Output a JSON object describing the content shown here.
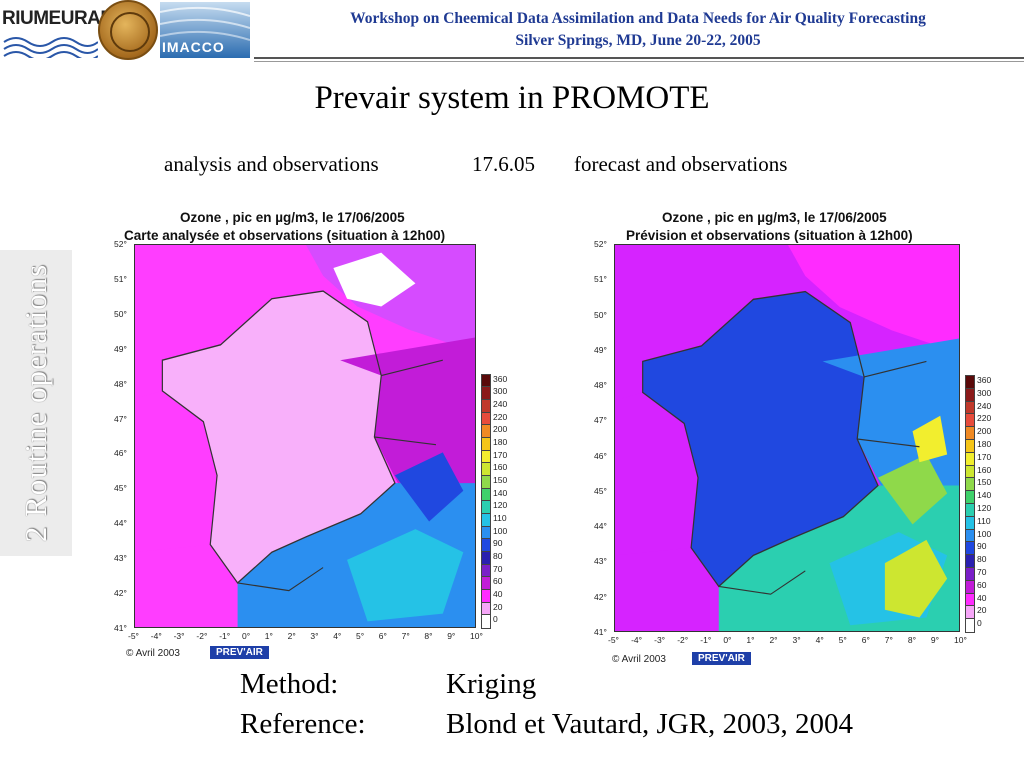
{
  "header": {
    "logo_text": "RIUMEURAD",
    "imacco_label": "IMACCO",
    "line1": "Workshop on Cheemical Data Assimilation and Data Needs for Air Quality Forecasting",
    "line2": "Silver Springs, MD, June 20-22, 2005"
  },
  "title": "Prevair system in PROMOTE",
  "subtitles": {
    "left": "analysis and observations",
    "date": "17.6.05",
    "right": "forecast and observations"
  },
  "side_label": "2 Routine operations",
  "maps": [
    {
      "title1": "Ozone , pic en µg/m3, le 17/06/2005",
      "title2": "Carte analysée et observations (situation à 12h00)",
      "copyright": "© Avril 2003",
      "badge": "PREV'AIR",
      "scheme": "analysis"
    },
    {
      "title1": "Ozone , pic en µg/m3, le 17/06/2005",
      "title2": "Prévision et observations (situation à 12h00)",
      "copyright": "© Avril 2003",
      "badge": "PREV'AIR",
      "scheme": "forecast"
    }
  ],
  "lat_labels": [
    "52°",
    "51°",
    "50°",
    "49°",
    "48°",
    "47°",
    "46°",
    "45°",
    "44°",
    "43°",
    "42°",
    "41°"
  ],
  "lon_labels": [
    "-5°",
    "-4°",
    "-3°",
    "-2°",
    "-1°",
    "0°",
    "1°",
    "2°",
    "3°",
    "4°",
    "5°",
    "6°",
    "7°",
    "8°",
    "9°",
    "10°"
  ],
  "colorbar": {
    "labels": [
      "360",
      "300",
      "240",
      "220",
      "200",
      "180",
      "170",
      "160",
      "150",
      "140",
      "120",
      "110",
      "100",
      "90",
      "80",
      "70",
      "60",
      "40",
      "20",
      "0"
    ],
    "colors": [
      "#5a0a0a",
      "#8b1a1a",
      "#c0392b",
      "#e74c3c",
      "#f08a24",
      "#f5c518",
      "#f2ee2e",
      "#cde630",
      "#8fd94a",
      "#3fd16b",
      "#2bcfb0",
      "#25c2e6",
      "#2b8ff0",
      "#2048e0",
      "#2a20b0",
      "#7a1fc8",
      "#c21cd8",
      "#ff2bff",
      "#f6a6f8",
      "#ffffff"
    ]
  },
  "method": {
    "label": "Method:",
    "value": "Kriging"
  },
  "reference": {
    "label": "Reference:",
    "value": "Blond et Vautard, JGR, 2003, 2004"
  }
}
